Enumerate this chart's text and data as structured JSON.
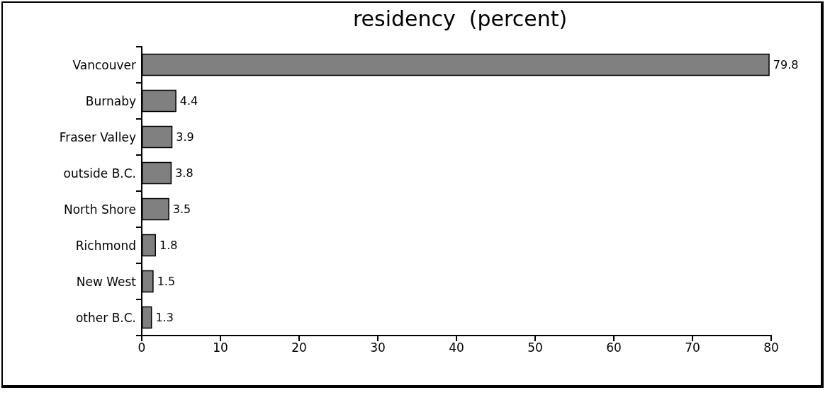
{
  "chart_data": {
    "type": "bar",
    "orientation": "horizontal",
    "title": "residency  (percent)",
    "categories": [
      "Vancouver",
      "Burnaby",
      "Fraser Valley",
      "outside B.C.",
      "North Shore",
      "Richmond",
      "New West",
      "other B.C."
    ],
    "values": [
      79.8,
      4.4,
      3.9,
      3.8,
      3.5,
      1.8,
      1.5,
      1.3
    ],
    "color": "#808080",
    "xlim": [
      0,
      80
    ],
    "xticks": [
      0,
      10,
      20,
      30,
      40,
      50,
      60,
      70,
      80
    ],
    "data_labels": true,
    "grid": false
  }
}
